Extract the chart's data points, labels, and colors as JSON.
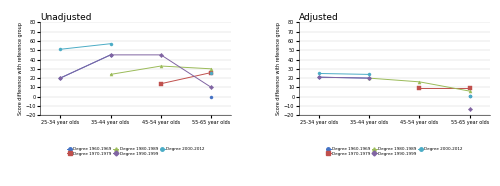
{
  "x_labels": [
    "25-34 year olds",
    "35-44 year olds",
    "45-54 year olds",
    "55-65 year olds"
  ],
  "unadjusted": {
    "1960-1969": [
      20,
      45,
      null,
      0
    ],
    "1970-1979": [
      null,
      null,
      14,
      26
    ],
    "1980-1989": [
      null,
      24,
      33,
      30
    ],
    "1990-1999": [
      20,
      45,
      45,
      10
    ],
    "2000-2012": [
      51,
      57,
      null,
      26
    ]
  },
  "adjusted": {
    "1960-1969": [
      21,
      20,
      null,
      1
    ],
    "1970-1979": [
      null,
      null,
      9,
      9
    ],
    "1980-1989": [
      null,
      20,
      16,
      6
    ],
    "1990-1999": [
      21,
      20,
      null,
      -13
    ],
    "2000-2012": [
      25,
      24,
      null,
      1
    ]
  },
  "colors": {
    "1960-1969": "#4472c4",
    "1970-1979": "#c0504d",
    "1980-1989": "#9bbb59",
    "1990-1999": "#8064a2",
    "2000-2012": "#4bacc6"
  },
  "ylim": [
    -20,
    80
  ],
  "yticks": [
    -20,
    -10,
    0,
    10,
    20,
    30,
    40,
    50,
    60,
    70,
    80
  ],
  "ylabel": "Score difference with reference group",
  "title_unadj": "Unadjusted",
  "title_adj": "Adjusted",
  "legend_labels": {
    "1960-1969": "Degree 1960-1969",
    "1970-1979": "Degree 1970-1979",
    "1980-1989": "Degree 1980-1989",
    "1990-1999": "Degree 1990-1999",
    "2000-2012": "Degree 2000-2012"
  }
}
